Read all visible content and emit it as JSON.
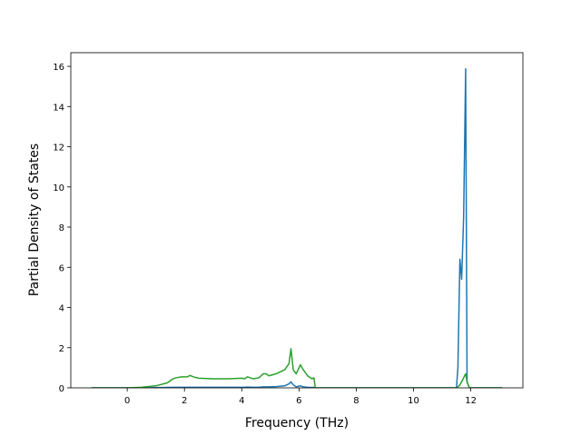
{
  "chart_data": {
    "type": "line",
    "xlabel": "Frequency (THz)",
    "ylabel": "Partial Density of States",
    "x": [
      -1.25,
      0,
      0.5,
      1.0,
      1.4,
      1.6,
      1.7,
      1.9,
      2.1,
      2.2,
      2.3,
      2.5,
      3.0,
      3.5,
      4.0,
      4.1,
      4.2,
      4.4,
      4.6,
      4.75,
      4.85,
      4.95,
      5.2,
      5.5,
      5.65,
      5.72,
      5.8,
      5.9,
      6.05,
      6.15,
      6.3,
      6.45,
      6.52,
      6.57,
      11.5,
      11.55,
      11.62,
      11.68,
      11.75,
      11.82,
      11.87,
      11.95,
      13.1
    ],
    "series": [
      {
        "color": "#1f77b4",
        "values": [
          0,
          0,
          0,
          0.01,
          0.02,
          0.03,
          0.03,
          0.03,
          0.03,
          0.03,
          0.03,
          0.03,
          0.03,
          0.03,
          0.03,
          0.03,
          0.04,
          0.03,
          0.03,
          0.05,
          0.05,
          0.05,
          0.06,
          0.1,
          0.2,
          0.3,
          0.15,
          0.05,
          0.1,
          0.05,
          0.03,
          0.02,
          0.02,
          0,
          0,
          1.0,
          6.4,
          5.4,
          8.5,
          15.88,
          0.3,
          0,
          0
        ]
      },
      {
        "color": "#2ca02c",
        "values": [
          0,
          0,
          0.03,
          0.1,
          0.25,
          0.45,
          0.5,
          0.55,
          0.55,
          0.62,
          0.55,
          0.48,
          0.45,
          0.45,
          0.48,
          0.45,
          0.55,
          0.45,
          0.5,
          0.7,
          0.7,
          0.6,
          0.7,
          0.9,
          1.2,
          1.95,
          0.9,
          0.7,
          1.15,
          0.9,
          0.6,
          0.45,
          0.5,
          0,
          0,
          0.05,
          0.15,
          0.3,
          0.5,
          0.7,
          0.3,
          0,
          0
        ]
      }
    ],
    "xlim": [
      -1.97,
      13.82
    ],
    "xticks": [
      0,
      2,
      4,
      6,
      8,
      10,
      12
    ],
    "ylim": [
      0,
      16.68
    ],
    "yticks": [
      0,
      2,
      4,
      6,
      8,
      10,
      12,
      14,
      16
    ],
    "grid": false
  }
}
